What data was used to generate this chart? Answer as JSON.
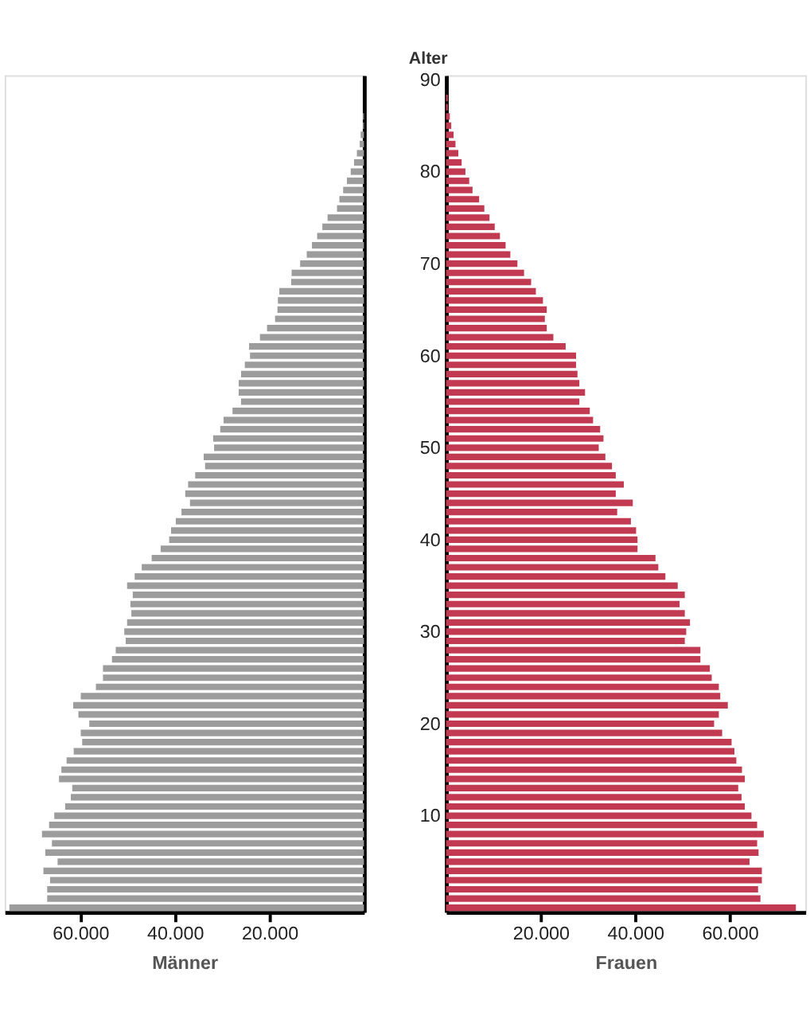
{
  "chart_data": [
    {
      "type": "bar",
      "orientation": "horizontal",
      "xlabel": "Männer",
      "tick_labels": "x",
      "categories": [
        "90",
        null,
        null,
        null,
        null,
        null,
        null,
        null,
        null,
        null,
        "80",
        null,
        null,
        null,
        null,
        null,
        null,
        null,
        null,
        null,
        "70",
        null,
        null,
        null,
        null,
        null,
        null,
        null,
        null,
        null,
        "60",
        null,
        null,
        null,
        null,
        null,
        null,
        null,
        null,
        null,
        "50",
        null,
        null,
        null,
        null,
        null,
        null,
        null,
        null,
        null,
        "40",
        null,
        null,
        null,
        null,
        null,
        null,
        null,
        null,
        null,
        "30",
        null,
        null,
        null,
        null,
        null,
        null,
        null,
        null,
        null,
        "20",
        null,
        null,
        null,
        null,
        null,
        null,
        null,
        null,
        null,
        "10",
        null,
        null,
        null,
        null,
        null,
        null,
        null,
        null,
        null,
        null
      ],
      "series": [
        {
          "color": "#9c9c9c",
          "values": [
            null,
            null,
            null,
            null,
            200,
            200,
            700,
            900,
            1500,
            2100,
            2800,
            3600,
            4400,
            5200,
            5700,
            7700,
            8800,
            9900,
            11000,
            12100,
            13500,
            15300,
            15400,
            17900,
            18200,
            18300,
            18800,
            20500,
            22000,
            24300,
            24100,
            25200,
            26000,
            26500,
            26500,
            26000,
            27800,
            29700,
            30400,
            31900,
            31700,
            33900,
            33600,
            35700,
            37200,
            37800,
            36800,
            38600,
            39800,
            40800,
            41200,
            43000,
            44900,
            47000,
            48500,
            50100,
            48900,
            49400,
            49200,
            50100,
            50700,
            50400,
            52500,
            53300,
            55200,
            55200,
            56700,
            59900,
            61500,
            60400,
            58100,
            59900,
            59600,
            61400,
            62900,
            64000,
            64500,
            61700,
            62000,
            63200,
            65500,
            66600,
            68100,
            66000,
            67400,
            64800,
            67800,
            66400,
            67000,
            67000,
            75000
          ]
        }
      ],
      "xlim": [
        76000,
        0
      ],
      "xticks": [
        {
          "value": 60000,
          "label": "60.000"
        },
        {
          "value": 40000,
          "label": "40.000"
        },
        {
          "value": 20000,
          "label": "20.000"
        }
      ]
    },
    {
      "type": "bar",
      "orientation": "horizontal",
      "xlabel": "Frauen",
      "ylabel": "Alter",
      "categories": [
        "90",
        null,
        null,
        null,
        null,
        null,
        null,
        null,
        null,
        null,
        "80",
        null,
        null,
        null,
        null,
        null,
        null,
        null,
        null,
        null,
        "70",
        null,
        null,
        null,
        null,
        null,
        null,
        null,
        null,
        null,
        "60",
        null,
        null,
        null,
        null,
        null,
        null,
        null,
        null,
        null,
        "50",
        null,
        null,
        null,
        null,
        null,
        null,
        null,
        null,
        null,
        "40",
        null,
        null,
        null,
        null,
        null,
        null,
        null,
        null,
        null,
        "30",
        null,
        null,
        null,
        null,
        null,
        null,
        null,
        null,
        null,
        "20",
        null,
        null,
        null,
        null,
        null,
        null,
        null,
        null,
        null,
        "10",
        null,
        null,
        null,
        null,
        null,
        null,
        null,
        null,
        null,
        null
      ],
      "series": [
        {
          "color": "#c23a52",
          "values": [
            null,
            null,
            400,
            400,
            800,
            1100,
            1600,
            2000,
            2600,
            3300,
            4100,
            4900,
            5600,
            7000,
            8100,
            9200,
            10300,
            11400,
            12600,
            13600,
            15100,
            16500,
            18000,
            19000,
            20500,
            21300,
            20900,
            21300,
            22700,
            25300,
            27500,
            27500,
            27800,
            28200,
            29400,
            28200,
            30400,
            31100,
            32600,
            33300,
            32300,
            33700,
            35100,
            35900,
            37600,
            35900,
            39500,
            36200,
            39100,
            40200,
            40500,
            40500,
            44300,
            44900,
            46400,
            49000,
            50500,
            49400,
            50500,
            51600,
            50800,
            50500,
            53800,
            53800,
            55800,
            56200,
            57700,
            58000,
            59600,
            57700,
            56700,
            58400,
            60400,
            61000,
            61400,
            62600,
            63200,
            61800,
            62500,
            63200,
            64600,
            65800,
            67200,
            65800,
            66100,
            64200,
            66800,
            66800,
            66000,
            66500,
            74000
          ]
        }
      ],
      "xlim": [
        0,
        76000
      ],
      "xticks": [
        {
          "value": 20000,
          "label": "20.000"
        },
        {
          "value": 40000,
          "label": "40.000"
        },
        {
          "value": 60000,
          "label": "60.000"
        }
      ]
    }
  ]
}
